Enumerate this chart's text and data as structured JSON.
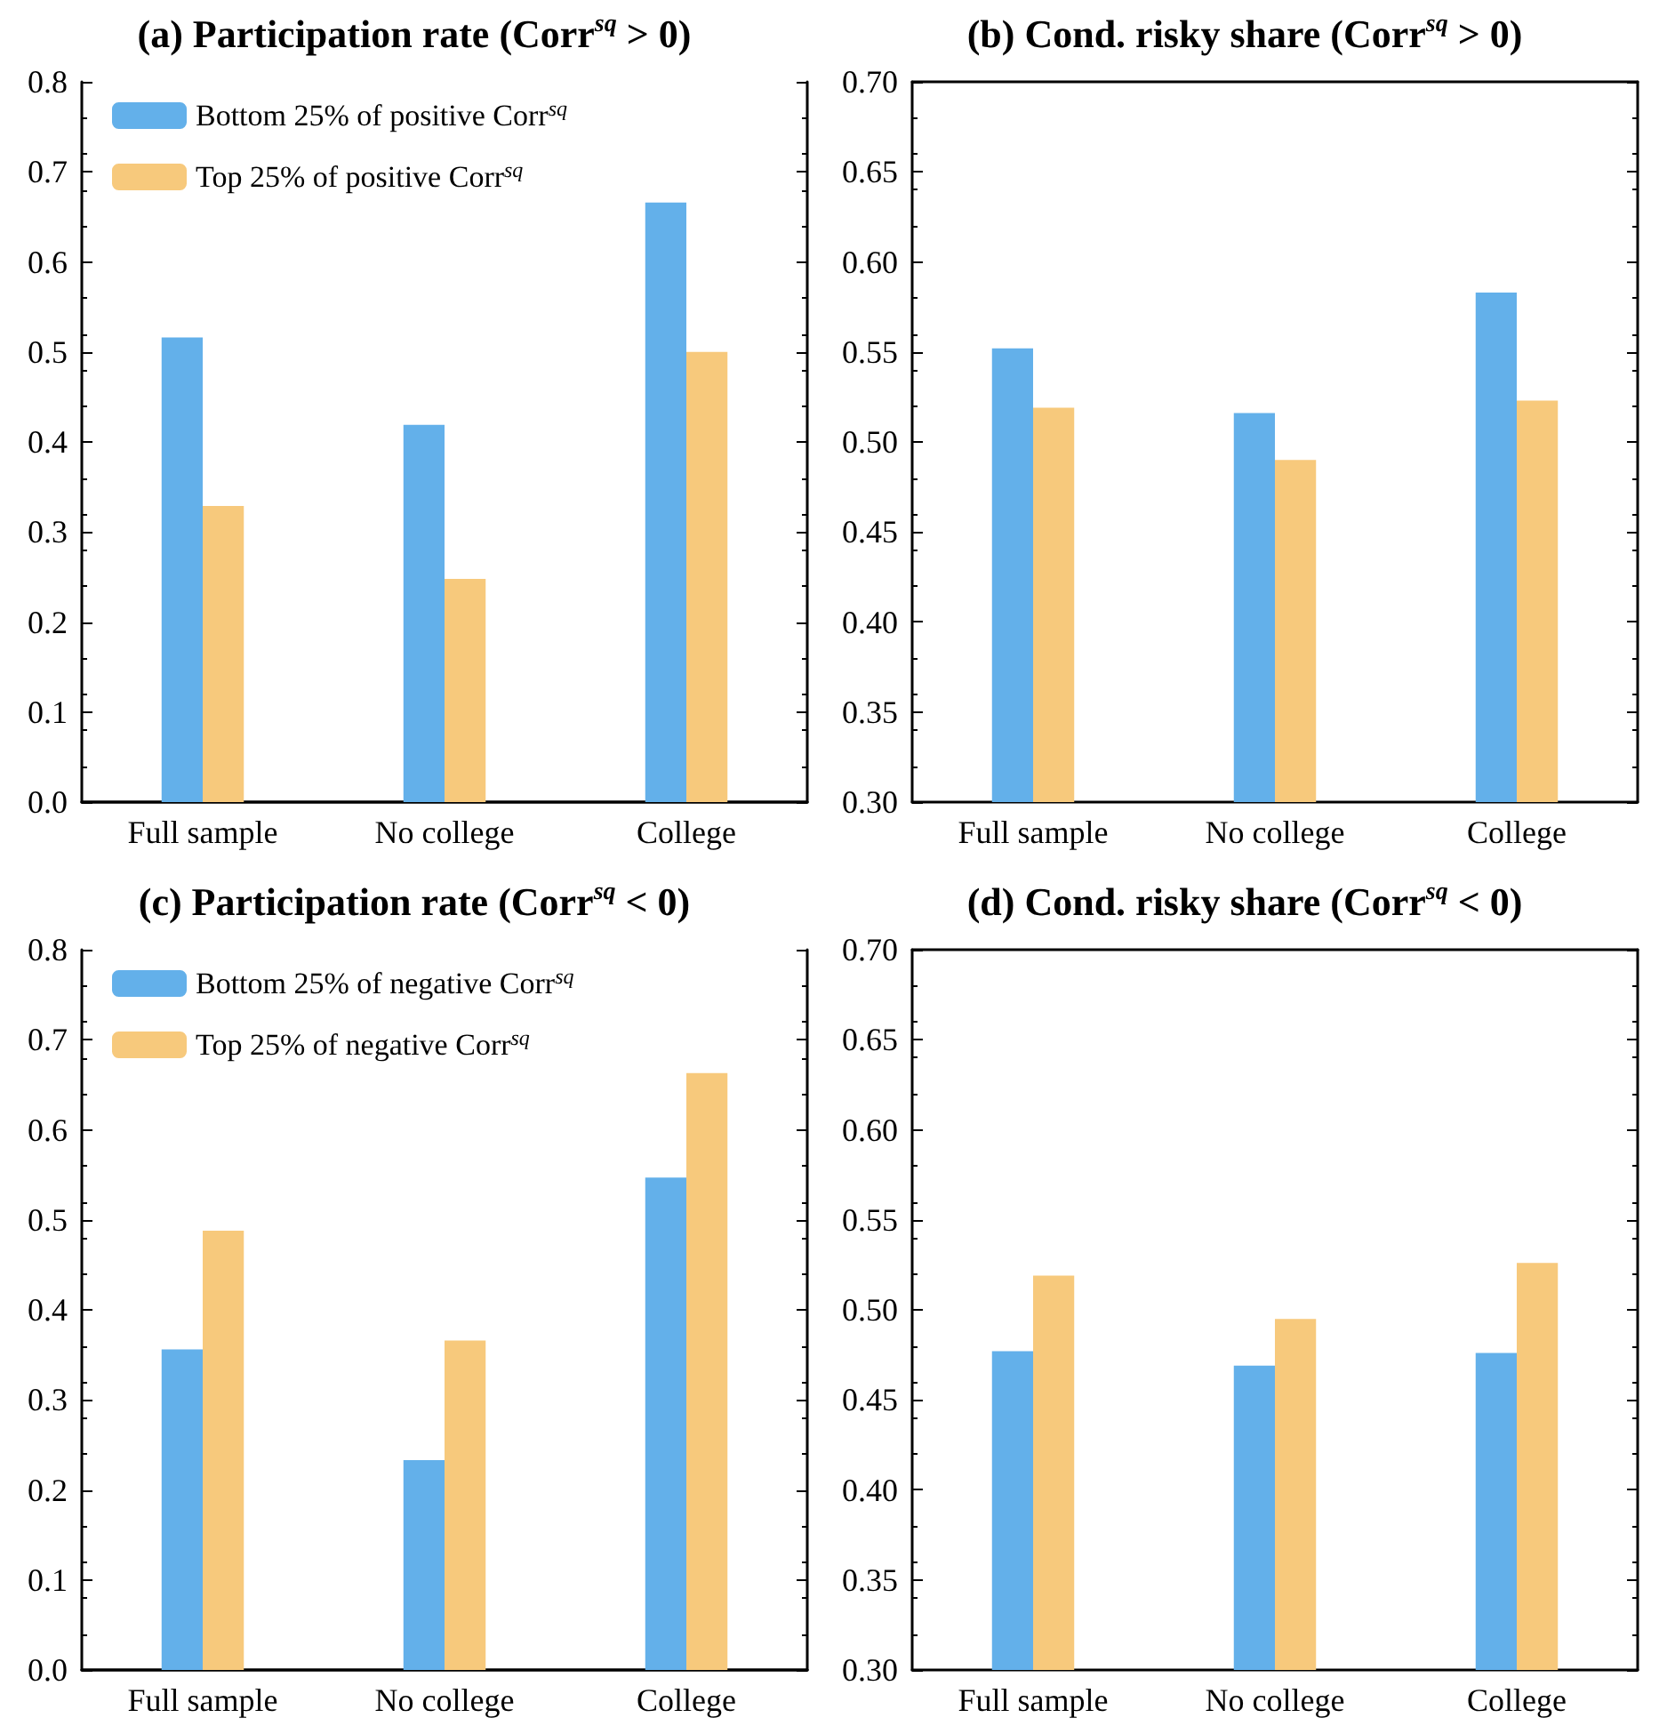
{
  "chart_data": [
    {
      "type": "bar",
      "title": "(a) Participation rate (Corr$^{sq}$ > 0)",
      "categories": [
        "Full sample",
        "No college",
        "College"
      ],
      "series": [
        {
          "name": "Bottom 25% of positive Corr$^{sq}$",
          "color": "#63b0ea",
          "values": [
            0.516,
            0.419,
            0.666
          ]
        },
        {
          "name": "Top 25% of positive Corr$^{sq}$",
          "color": "#f7c97c",
          "values": [
            0.329,
            0.248,
            0.5
          ]
        }
      ],
      "ylim": [
        0,
        0.8
      ],
      "yticks": [
        {
          "value": 0,
          "label": "0.0"
        },
        0.1,
        0.2,
        0.3,
        0.4,
        0.5,
        0.6,
        0.7,
        0.8
      ],
      "grid": false,
      "legend": "top left"
    },
    {
      "type": "bar",
      "title": "(b) Cond. risky share (Corr$^{sq}$ > 0)",
      "categories": [
        "Full sample",
        "No college",
        "College"
      ],
      "series": [
        {
          "color": "#63b0ea",
          "values": [
            0.552,
            0.516,
            0.583
          ]
        },
        {
          "color": "#f7c97c",
          "values": [
            0.519,
            0.49,
            0.523
          ]
        }
      ],
      "ylim": [
        0.3,
        0.7
      ],
      "yticks": [
        {
          "value": 0.3,
          "label": "0.30"
        },
        0.35,
        {
          "value": 0.4,
          "label": "0.40"
        },
        0.45,
        {
          "value": 0.5,
          "label": "0.50"
        },
        0.55,
        {
          "value": 0.6,
          "label": "0.60"
        },
        0.65,
        {
          "value": 0.7,
          "label": "0.70"
        }
      ],
      "grid": false
    },
    {
      "type": "bar",
      "title": "(c) Participation rate (Corr$^{sq}$ < 0)",
      "categories": [
        "Full sample",
        "No college",
        "College"
      ],
      "series": [
        {
          "name": "Bottom 25% of negative Corr$^{sq}$",
          "color": "#63b0ea",
          "values": [
            0.356,
            0.233,
            0.547
          ]
        },
        {
          "name": "Top 25% of negative Corr$^{sq}$",
          "color": "#f7c97c",
          "values": [
            0.488,
            0.366,
            0.663
          ]
        }
      ],
      "ylim": [
        0,
        0.8
      ],
      "yticks": [
        {
          "value": 0,
          "label": "0.0"
        },
        0.1,
        0.2,
        0.3,
        0.4,
        0.5,
        0.6,
        0.7,
        0.8
      ],
      "grid": false,
      "legend": "top left"
    },
    {
      "type": "bar",
      "title": "(d) Cond. risky share (Corr$^{sq}$ < 0)",
      "categories": [
        "Full sample",
        "No college",
        "College"
      ],
      "series": [
        {
          "color": "#63b0ea",
          "values": [
            0.477,
            0.469,
            0.476
          ]
        },
        {
          "color": "#f7c97c",
          "values": [
            0.519,
            0.495,
            0.526
          ]
        }
      ],
      "ylim": [
        0.3,
        0.7
      ],
      "yticks": [
        {
          "value": 0.3,
          "label": "0.30"
        },
        0.35,
        {
          "value": 0.4,
          "label": "0.40"
        },
        0.45,
        {
          "value": 0.5,
          "label": "0.50"
        },
        0.55,
        {
          "value": 0.6,
          "label": "0.60"
        },
        0.65,
        {
          "value": 0.7,
          "label": "0.70"
        }
      ],
      "grid": false
    }
  ]
}
